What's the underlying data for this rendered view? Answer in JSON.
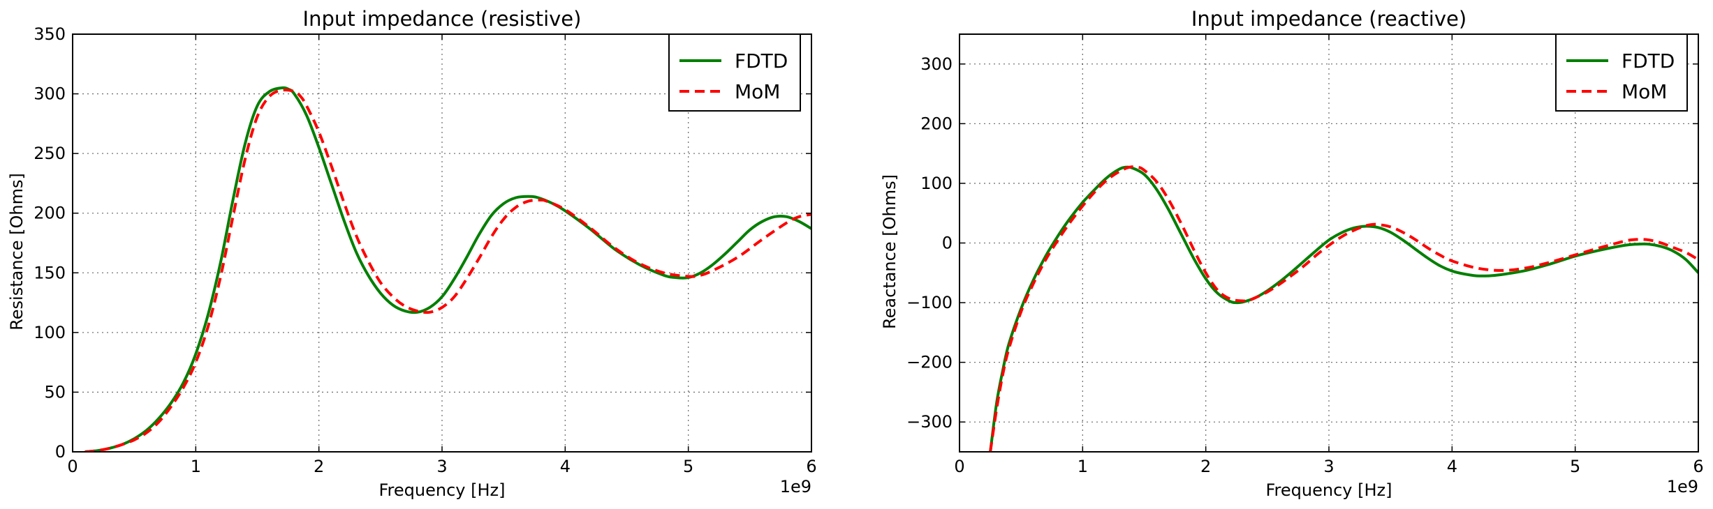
{
  "chart_data": [
    {
      "type": "line",
      "title": "Input impedance (resistive)",
      "xlabel": "Frequency [Hz]",
      "ylabel": "Resistance [Ohms]",
      "x_offset_label": "1e9",
      "xlim": [
        0,
        6
      ],
      "ylim": [
        0,
        350
      ],
      "xticks": [
        0,
        1,
        2,
        3,
        4,
        5,
        6
      ],
      "yticks": [
        0,
        50,
        100,
        150,
        200,
        250,
        300,
        350
      ],
      "grid": true,
      "legend": "top-right",
      "series": [
        {
          "name": "FDTD",
          "color": "#007f00",
          "style": "solid",
          "x": [
            0.1,
            0.2,
            0.3,
            0.4,
            0.5,
            0.6,
            0.7,
            0.8,
            0.9,
            1.0,
            1.1,
            1.2,
            1.3,
            1.4,
            1.5,
            1.6,
            1.7,
            1.75,
            1.8,
            1.9,
            2.0,
            2.1,
            2.2,
            2.3,
            2.4,
            2.5,
            2.6,
            2.7,
            2.8,
            2.9,
            3.0,
            3.1,
            3.2,
            3.3,
            3.4,
            3.5,
            3.6,
            3.7,
            3.78,
            3.9,
            4.0,
            4.2,
            4.4,
            4.6,
            4.8,
            4.9,
            5.0,
            5.1,
            5.2,
            5.3,
            5.4,
            5.5,
            5.6,
            5.7,
            5.8,
            5.9,
            6.0
          ],
          "y": [
            0,
            1,
            3,
            6,
            11,
            18,
            28,
            41,
            58,
            82,
            115,
            158,
            210,
            258,
            290,
            302,
            305,
            304,
            300,
            282,
            255,
            225,
            195,
            168,
            148,
            133,
            123,
            118,
            117,
            121,
            130,
            145,
            163,
            182,
            198,
            208,
            213,
            214,
            213,
            208,
            202,
            187,
            170,
            157,
            148,
            146,
            146,
            150,
            157,
            166,
            176,
            186,
            193,
            197,
            197,
            193,
            187
          ]
        },
        {
          "name": "MoM",
          "color": "#ff0000",
          "style": "dashed",
          "x": [
            0.1,
            0.2,
            0.3,
            0.4,
            0.5,
            0.6,
            0.7,
            0.8,
            0.9,
            1.0,
            1.1,
            1.2,
            1.3,
            1.4,
            1.5,
            1.6,
            1.7,
            1.8,
            1.85,
            1.9,
            2.0,
            2.1,
            2.2,
            2.3,
            2.4,
            2.5,
            2.6,
            2.7,
            2.8,
            2.9,
            3.0,
            3.1,
            3.2,
            3.3,
            3.4,
            3.5,
            3.6,
            3.7,
            3.8,
            3.85,
            4.0,
            4.2,
            4.4,
            4.6,
            4.8,
            5.0,
            5.1,
            5.2,
            5.4,
            5.6,
            5.8,
            5.9,
            6.0
          ],
          "y": [
            0,
            1,
            3,
            6,
            10,
            16,
            25,
            38,
            54,
            75,
            105,
            146,
            196,
            245,
            281,
            298,
            303,
            302,
            298,
            290,
            268,
            240,
            210,
            182,
            160,
            142,
            130,
            122,
            118,
            117,
            121,
            130,
            145,
            162,
            180,
            195,
            205,
            210,
            211,
            210,
            203,
            188,
            171,
            158,
            150,
            147,
            148,
            152,
            163,
            178,
            192,
            197,
            199
          ]
        }
      ]
    },
    {
      "type": "line",
      "title": "Input impedance (reactive)",
      "xlabel": "Frequency [Hz]",
      "ylabel": "Reactance [Ohms]",
      "x_offset_label": "1e9",
      "xlim": [
        0,
        6
      ],
      "ylim": [
        -350,
        350
      ],
      "xticks": [
        0,
        1,
        2,
        3,
        4,
        5,
        6
      ],
      "yticks": [
        -300,
        -200,
        -100,
        0,
        100,
        200,
        300
      ],
      "grid": true,
      "legend": "top-right",
      "series": [
        {
          "name": "FDTD",
          "color": "#007f00",
          "style": "solid",
          "x": [
            0.25,
            0.3,
            0.35,
            0.4,
            0.5,
            0.6,
            0.7,
            0.8,
            0.9,
            1.0,
            1.1,
            1.2,
            1.3,
            1.35,
            1.4,
            1.5,
            1.6,
            1.7,
            1.8,
            1.9,
            2.0,
            2.1,
            2.2,
            2.25,
            2.3,
            2.4,
            2.5,
            2.6,
            2.7,
            2.8,
            2.9,
            3.0,
            3.1,
            3.2,
            3.3,
            3.4,
            3.5,
            3.6,
            3.7,
            3.8,
            3.9,
            4.0,
            4.1,
            4.2,
            4.3,
            4.4,
            4.6,
            4.8,
            5.0,
            5.2,
            5.4,
            5.5,
            5.6,
            5.7,
            5.8,
            5.9,
            6.0
          ],
          "y": [
            -350,
            -270,
            -215,
            -170,
            -110,
            -62,
            -22,
            12,
            42,
            68,
            90,
            110,
            124,
            127,
            126,
            115,
            90,
            55,
            15,
            -25,
            -60,
            -85,
            -98,
            -100,
            -99,
            -92,
            -80,
            -65,
            -48,
            -30,
            -12,
            5,
            17,
            25,
            28,
            26,
            18,
            5,
            -10,
            -25,
            -38,
            -47,
            -52,
            -55,
            -55,
            -53,
            -46,
            -35,
            -22,
            -12,
            -4,
            -2,
            -2,
            -6,
            -14,
            -28,
            -50
          ]
        },
        {
          "name": "MoM",
          "color": "#ff0000",
          "style": "dashed",
          "x": [
            0.25,
            0.3,
            0.35,
            0.4,
            0.5,
            0.6,
            0.7,
            0.8,
            0.9,
            1.0,
            1.1,
            1.2,
            1.3,
            1.38,
            1.45,
            1.5,
            1.6,
            1.7,
            1.8,
            1.9,
            2.0,
            2.1,
            2.2,
            2.3,
            2.35,
            2.4,
            2.5,
            2.6,
            2.7,
            2.8,
            2.9,
            3.0,
            3.1,
            3.2,
            3.3,
            3.35,
            3.4,
            3.5,
            3.6,
            3.7,
            3.8,
            3.9,
            4.0,
            4.2,
            4.4,
            4.6,
            4.8,
            5.0,
            5.2,
            5.4,
            5.5,
            5.6,
            5.7,
            5.8,
            5.9,
            6.0
          ],
          "y": [
            -350,
            -280,
            -222,
            -178,
            -115,
            -68,
            -28,
            5,
            35,
            62,
            86,
            106,
            120,
            127,
            127,
            122,
            103,
            72,
            33,
            -10,
            -50,
            -80,
            -94,
            -97,
            -96,
            -92,
            -82,
            -69,
            -54,
            -38,
            -20,
            -4,
            10,
            21,
            29,
            31,
            31,
            27,
            18,
            6,
            -8,
            -20,
            -30,
            -42,
            -46,
            -42,
            -32,
            -20,
            -8,
            3,
            6,
            5,
            0,
            -8,
            -16,
            -28
          ]
        }
      ]
    }
  ]
}
